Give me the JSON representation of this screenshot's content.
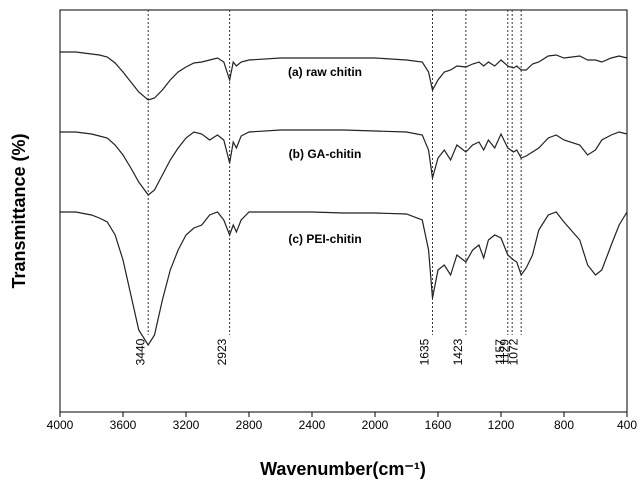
{
  "chart_data": {
    "type": "line",
    "xlabel": "Wavenumber(cm⁻¹)",
    "ylabel": "Transmittance (%)",
    "xlim": [
      4000,
      400
    ],
    "ylim": [
      0,
      100.5
    ],
    "xticks": [
      4000,
      3600,
      3200,
      2800,
      2400,
      2000,
      1600,
      1200,
      800,
      400
    ],
    "markers": [
      3440,
      2923,
      1635,
      1423,
      1157,
      1072,
      1129
    ],
    "x": [
      4000,
      3900,
      3800,
      3750,
      3700,
      3650,
      3600,
      3550,
      3500,
      3440,
      3400,
      3350,
      3300,
      3250,
      3200,
      3150,
      3100,
      3050,
      3000,
      2960,
      2923,
      2900,
      2880,
      2850,
      2800,
      2600,
      2400,
      2200,
      2000,
      1800,
      1700,
      1660,
      1635,
      1600,
      1560,
      1520,
      1480,
      1423,
      1380,
      1340,
      1310,
      1280,
      1240,
      1200,
      1157,
      1120,
      1100,
      1072,
      1040,
      1000,
      960,
      900,
      850,
      800,
      700,
      650,
      600,
      560,
      500,
      450,
      400
    ],
    "series": [
      {
        "name": "(a) raw chitin",
        "color": "#222222",
        "values": [
          90,
          90,
          89.5,
          89.25,
          88.75,
          87.25,
          85,
          82.5,
          80,
          78,
          78.5,
          80.5,
          83,
          85,
          86.25,
          87.25,
          87.5,
          88,
          88.5,
          87.5,
          83,
          87.5,
          86.5,
          87.5,
          88,
          88.5,
          88.5,
          88.5,
          88.5,
          88,
          87.5,
          85,
          80.5,
          83,
          85,
          85.5,
          86.5,
          86.25,
          87,
          87.5,
          86.5,
          87.5,
          86.5,
          88,
          86.5,
          86,
          86.5,
          85.5,
          85.5,
          87,
          87.5,
          89,
          89.25,
          88.5,
          89,
          88,
          88,
          87.5,
          88.5,
          89,
          88.5
        ]
      },
      {
        "name": "(b) GA-chitin",
        "color": "#222222",
        "values": [
          70,
          70,
          69.5,
          69,
          68.5,
          66.75,
          64.25,
          61,
          57.5,
          54.25,
          55.5,
          59.25,
          63,
          66,
          68.5,
          70,
          69.5,
          68,
          69.25,
          68,
          62.25,
          67.5,
          66,
          69,
          70,
          70.5,
          70.5,
          70.5,
          70.25,
          70,
          69.25,
          65.5,
          58.5,
          63.5,
          65.5,
          63,
          66.75,
          65,
          66.75,
          67.5,
          65.5,
          68,
          66,
          69.5,
          66,
          65,
          65.5,
          63.5,
          64,
          65,
          66,
          68.5,
          69.25,
          68,
          66.75,
          64.25,
          65.5,
          68,
          69.25,
          70,
          69.5
        ]
      },
      {
        "name": "(c) PEI-chitin",
        "color": "#222222",
        "values": [
          50,
          50,
          49.25,
          48.5,
          47.5,
          44.25,
          38,
          29.25,
          20.5,
          16.75,
          19.25,
          28,
          35.5,
          40.5,
          44.25,
          46,
          46.75,
          49.25,
          50,
          48,
          44.25,
          46.75,
          45,
          48,
          50,
          50,
          50,
          49.75,
          49.75,
          49.5,
          48,
          40.5,
          28.5,
          35.5,
          36.75,
          34.25,
          39.25,
          37.5,
          40.5,
          41.75,
          38.5,
          43,
          44.25,
          43.5,
          39.25,
          38,
          37.5,
          34.25,
          36,
          39.25,
          45.5,
          49.25,
          50,
          47.5,
          43,
          36.75,
          34.25,
          35.5,
          41.75,
          46.75,
          50
        ]
      }
    ]
  }
}
